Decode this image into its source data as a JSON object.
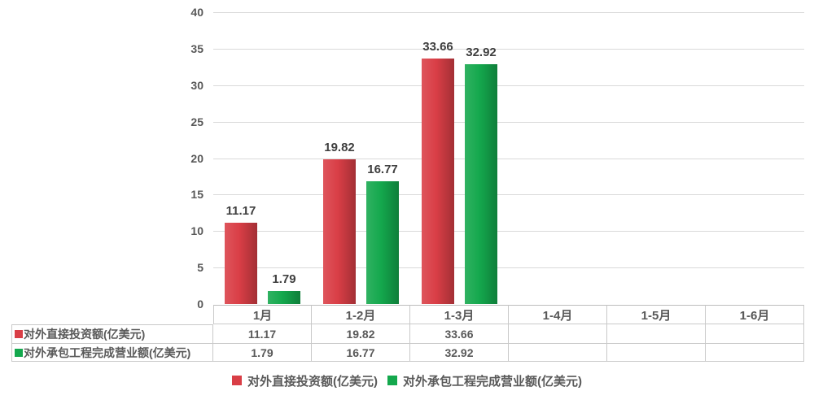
{
  "chart_data": {
    "type": "bar",
    "title": "",
    "xlabel": "",
    "ylabel": "",
    "ylim": [
      0,
      40
    ],
    "ytick_step": 5,
    "grid": true,
    "legend_position": "bottom",
    "categories": [
      "1月",
      "1-2月",
      "1-3月",
      "1-4月",
      "1-5月",
      "1-6月"
    ],
    "series": [
      {
        "name": "对外直接投资额(亿美元)",
        "color": "#d93e46",
        "values": [
          11.17,
          19.82,
          33.66,
          null,
          null,
          null
        ]
      },
      {
        "name": "对外承包工程完成营业额(亿美元)",
        "color": "#14a84d",
        "values": [
          1.79,
          16.77,
          32.92,
          null,
          null,
          null
        ]
      }
    ]
  },
  "y_axis": {
    "tick_labels": [
      "0",
      "5",
      "10",
      "15",
      "20",
      "25",
      "30",
      "35",
      "40"
    ]
  },
  "table": {
    "columns": [
      "1月",
      "1-2月",
      "1-3月",
      "1-4月",
      "1-5月",
      "1-6月"
    ],
    "rows": [
      {
        "label": "对外直接投资额(亿美元)",
        "swatch_color": "#d93e46",
        "values": [
          "11.17",
          "19.82",
          "33.66",
          "",
          "",
          ""
        ]
      },
      {
        "label": "对外承包工程完成营业额(亿美元)",
        "swatch_color": "#14a84d",
        "values": [
          "1.79",
          "16.77",
          "32.92",
          "",
          "",
          ""
        ]
      }
    ]
  },
  "legend": {
    "items": [
      {
        "label": "对外直接投资额(亿美元)",
        "color": "#d93e46"
      },
      {
        "label": "对外承包工程完成营业额(亿美元)",
        "color": "#14a84d"
      }
    ]
  }
}
